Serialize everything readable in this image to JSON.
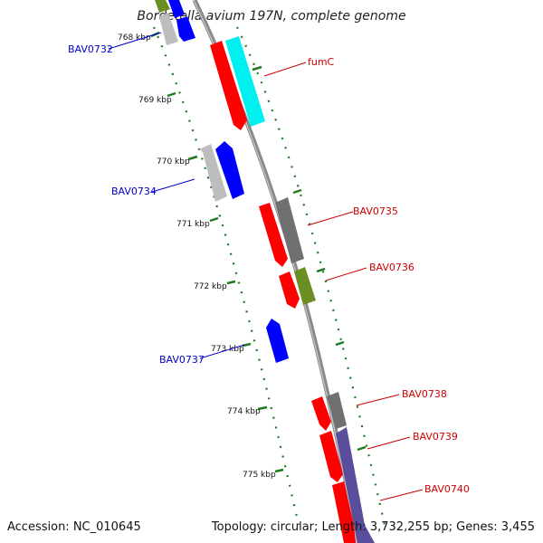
{
  "title": "Bordetella avium 197N, complete genome",
  "footer": {
    "accession": "Accession: NC_010645",
    "summary": "Topology: circular; Length: 3,732,255 bp; Genes: 3,455"
  },
  "colors": {
    "backbone": "#8a8a8a",
    "tick": "#1e7a1e",
    "label_forward": "#cc0000",
    "label_reverse": "#0000cc",
    "red": "#ff0000",
    "blue": "#0000ff",
    "cyan": "#00f0f0",
    "gray_light": "#bdbdbd",
    "gray_dark": "#707070",
    "olive": "#6b8e23",
    "purple": "#5a4e9c"
  },
  "scale_labels": [
    "768 kbp",
    "769 kbp",
    "770 kbp",
    "771 kbp",
    "772 kbp",
    "773 kbp",
    "774 kbp",
    "775 kbp"
  ],
  "gene_labels": {
    "forward": [
      "fumC",
      "BAV0735",
      "BAV0736",
      "BAV0738",
      "BAV0739",
      "BAV0740"
    ],
    "reverse": [
      "BAV0732",
      "BAV0734",
      "BAV0737"
    ]
  }
}
